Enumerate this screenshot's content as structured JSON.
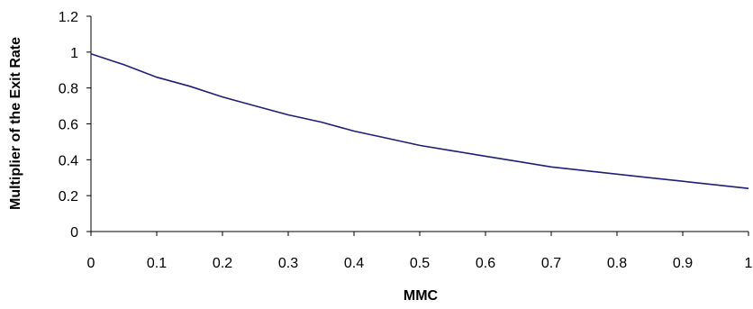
{
  "chart_data": {
    "type": "line",
    "title": "",
    "xlabel": "MMC",
    "ylabel": "Multiplier of the Exit Rate",
    "xlim": [
      0,
      1
    ],
    "ylim": [
      0,
      1.2
    ],
    "x_ticks": [
      "0",
      "0.1",
      "0.2",
      "0.3",
      "0.4",
      "0.5",
      "0.6",
      "0.7",
      "0.8",
      "0.9",
      "1"
    ],
    "y_ticks": [
      "0",
      "0.2",
      "0.4",
      "0.6",
      "0.8",
      "1",
      "1.2"
    ],
    "grid": false,
    "legend": "none",
    "series": [
      {
        "color": "#1f1f7a",
        "x": [
          0,
          0.05,
          0.1,
          0.15,
          0.2,
          0.25,
          0.3,
          0.35,
          0.4,
          0.45,
          0.5,
          0.55,
          0.6,
          0.65,
          0.7,
          0.75,
          0.8,
          0.85,
          0.9,
          0.95,
          1
        ],
        "y": [
          0.99,
          0.93,
          0.86,
          0.81,
          0.75,
          0.7,
          0.65,
          0.61,
          0.56,
          0.52,
          0.48,
          0.45,
          0.42,
          0.39,
          0.36,
          0.34,
          0.32,
          0.3,
          0.28,
          0.26,
          0.24
        ]
      }
    ]
  }
}
